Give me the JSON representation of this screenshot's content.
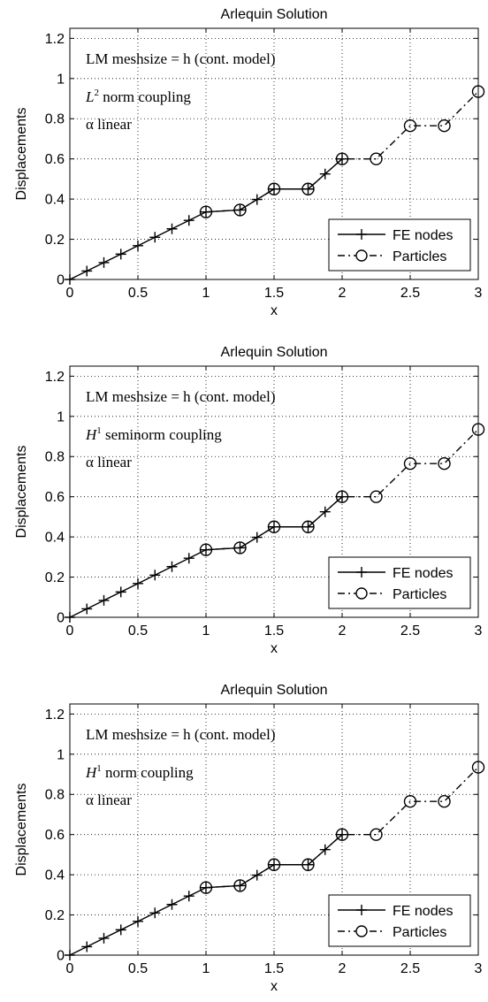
{
  "chart_data": [
    {
      "type": "line",
      "title": "Arlequin Solution",
      "xlabel": "x",
      "ylabel": "Displacements",
      "xlim": [
        0,
        3
      ],
      "ylim": [
        0,
        1.25
      ],
      "xticks": [
        "0",
        "0.5",
        "1",
        "1.5",
        "2",
        "2.5",
        "3"
      ],
      "yticks": [
        "0",
        "0.2",
        "0.4",
        "0.6",
        "0.8",
        "1",
        "1.2"
      ],
      "grid": true,
      "legend_position": "bottom-right",
      "annotation": {
        "line1": "LM meshsize = h (cont. model)",
        "coupling_symbol": "L",
        "coupling_sup": "2",
        "coupling_text": " norm coupling",
        "line3": "α linear"
      },
      "series": [
        {
          "name": "FE nodes",
          "marker": "plus",
          "style": "solid",
          "x": [
            0,
            0.125,
            0.25,
            0.375,
            0.5,
            0.625,
            0.75,
            0.875,
            1.0,
            1.25,
            1.375,
            1.5,
            1.75,
            1.875,
            2.0
          ],
          "y": [
            0,
            0.042,
            0.084,
            0.126,
            0.168,
            0.21,
            0.252,
            0.294,
            0.336,
            0.346,
            0.398,
            0.45,
            0.45,
            0.525,
            0.6
          ]
        },
        {
          "name": "Particles",
          "marker": "circle",
          "style": "dashdot",
          "x": [
            1.0,
            1.25,
            1.5,
            1.75,
            2.0,
            2.25,
            2.5,
            2.75,
            3.0
          ],
          "y": [
            0.336,
            0.346,
            0.45,
            0.45,
            0.6,
            0.6,
            0.765,
            0.765,
            0.935
          ]
        }
      ]
    },
    {
      "type": "line",
      "title": "Arlequin Solution",
      "xlabel": "x",
      "ylabel": "Displacements",
      "xlim": [
        0,
        3
      ],
      "ylim": [
        0,
        1.25
      ],
      "xticks": [
        "0",
        "0.5",
        "1",
        "1.5",
        "2",
        "2.5",
        "3"
      ],
      "yticks": [
        "0",
        "0.2",
        "0.4",
        "0.6",
        "0.8",
        "1",
        "1.2"
      ],
      "grid": true,
      "legend_position": "bottom-right",
      "annotation": {
        "line1": "LM meshsize = h (cont. model)",
        "coupling_symbol": "H",
        "coupling_sup": "1",
        "coupling_text": " seminorm coupling",
        "line3": "α linear"
      },
      "series": [
        {
          "name": "FE nodes",
          "marker": "plus",
          "style": "solid",
          "x": [
            0,
            0.125,
            0.25,
            0.375,
            0.5,
            0.625,
            0.75,
            0.875,
            1.0,
            1.25,
            1.375,
            1.5,
            1.75,
            1.875,
            2.0
          ],
          "y": [
            0,
            0.042,
            0.084,
            0.126,
            0.168,
            0.21,
            0.252,
            0.294,
            0.336,
            0.346,
            0.398,
            0.45,
            0.45,
            0.525,
            0.6
          ]
        },
        {
          "name": "Particles",
          "marker": "circle",
          "style": "dashdot",
          "x": [
            1.0,
            1.25,
            1.5,
            1.75,
            2.0,
            2.25,
            2.5,
            2.75,
            3.0
          ],
          "y": [
            0.336,
            0.346,
            0.45,
            0.45,
            0.6,
            0.6,
            0.765,
            0.765,
            0.935
          ]
        }
      ]
    },
    {
      "type": "line",
      "title": "Arlequin Solution",
      "xlabel": "x",
      "ylabel": "Displacements",
      "xlim": [
        0,
        3
      ],
      "ylim": [
        0,
        1.25
      ],
      "xticks": [
        "0",
        "0.5",
        "1",
        "1.5",
        "2",
        "2.5",
        "3"
      ],
      "yticks": [
        "0",
        "0.2",
        "0.4",
        "0.6",
        "0.8",
        "1",
        "1.2"
      ],
      "grid": true,
      "legend_position": "bottom-right",
      "annotation": {
        "line1": "LM meshsize = h (cont. model)",
        "coupling_symbol": "H",
        "coupling_sup": "1",
        "coupling_text": " norm coupling",
        "line3": "α linear"
      },
      "series": [
        {
          "name": "FE nodes",
          "marker": "plus",
          "style": "solid",
          "x": [
            0,
            0.125,
            0.25,
            0.375,
            0.5,
            0.625,
            0.75,
            0.875,
            1.0,
            1.25,
            1.375,
            1.5,
            1.75,
            1.875,
            2.0
          ],
          "y": [
            0,
            0.042,
            0.084,
            0.126,
            0.168,
            0.21,
            0.252,
            0.294,
            0.336,
            0.346,
            0.398,
            0.45,
            0.45,
            0.525,
            0.6
          ]
        },
        {
          "name": "Particles",
          "marker": "circle",
          "style": "dashdot",
          "x": [
            1.0,
            1.25,
            1.5,
            1.75,
            2.0,
            2.25,
            2.5,
            2.75,
            3.0
          ],
          "y": [
            0.336,
            0.346,
            0.45,
            0.45,
            0.6,
            0.6,
            0.765,
            0.765,
            0.935
          ]
        }
      ]
    }
  ]
}
